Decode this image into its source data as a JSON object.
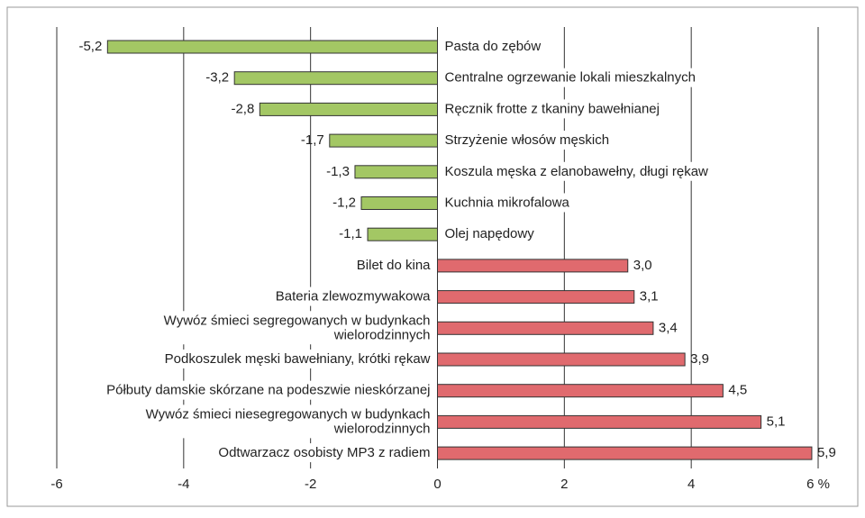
{
  "chart_data": {
    "type": "bar",
    "orientation": "horizontal",
    "categories": [
      "Pasta do zębów",
      "Centralne ogrzewanie lokali mieszkalnych",
      "Ręcznik frotte z tkaniny bawełnianej",
      "Strzyżenie włosów męskich",
      "Koszula męska z elanobawełny, długi rękaw",
      "Kuchnia mikrofalowa",
      "Olej napędowy",
      "Bilet do kina",
      "Bateria zlewozmywakowa",
      "Wywóz śmieci segregowanych w budynkach\nwielorodzinnych",
      "Podkoszulek męski bawełniany, krótki rękaw",
      "Półbuty damskie skórzane na podeszwie nieskórzanej",
      "Wywóz śmieci niesegregowanych w budynkach\nwielorodzinnych",
      "Odtwarzacz osobisty MP3 z radiem"
    ],
    "values": [
      -5.2,
      -3.2,
      -2.8,
      -1.7,
      -1.3,
      -1.2,
      -1.1,
      3.0,
      3.1,
      3.4,
      3.9,
      4.5,
      5.1,
      5.9
    ],
    "value_labels": [
      "-5,2",
      "-3,2",
      "-2,8",
      "-1,7",
      "-1,3",
      "-1,2",
      "-1,1",
      "3,0",
      "3,1",
      "3,4",
      "3,9",
      "4,5",
      "5,1",
      "5,9"
    ],
    "negative_color": "#a3c764",
    "positive_color": "#e06a6e",
    "xlim": [
      -6,
      6
    ],
    "xticks": [
      -6,
      -4,
      -2,
      0,
      2,
      4,
      {
        "value": 6,
        "label": "6 %"
      }
    ],
    "grid": true
  }
}
